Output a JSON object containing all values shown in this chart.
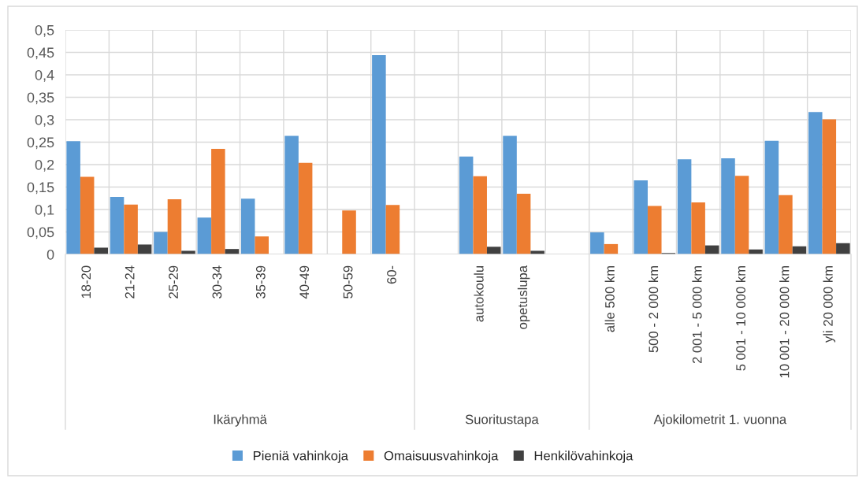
{
  "chart_data": {
    "type": "bar",
    "categories": [
      "18-20",
      "21-24",
      "25-29",
      "30-34",
      "35-39",
      "40-49",
      "50-59",
      "60-",
      null,
      "autokoulu",
      "opetuslupa",
      null,
      "alle 500 km",
      "500 - 2 000 km",
      "2 001 - 5 000 km",
      "5 001 - 10 000 km",
      "10 001 - 20 000 km",
      "yli 20 000 km"
    ],
    "series": [
      {
        "name": "Pieniä vahinkoja",
        "color": "#5b9bd5",
        "values": [
          0.252,
          0.128,
          0.05,
          0.082,
          0.124,
          0.264,
          null,
          0.444,
          null,
          0.218,
          0.264,
          null,
          0.049,
          0.165,
          0.212,
          0.214,
          0.253,
          0.317
        ]
      },
      {
        "name": "Omaisuusvahinkoja",
        "color": "#ed7d31",
        "values": [
          0.173,
          0.111,
          0.123,
          0.235,
          0.04,
          0.204,
          0.098,
          0.11,
          null,
          0.174,
          0.135,
          null,
          0.023,
          0.108,
          0.116,
          0.175,
          0.132,
          0.301
        ]
      },
      {
        "name": "Henkilövahinkoja",
        "color": "#404040",
        "values": [
          0.015,
          0.022,
          0.008,
          0.012,
          null,
          null,
          null,
          null,
          null,
          0.017,
          0.008,
          null,
          null,
          0.003,
          0.02,
          0.011,
          0.018,
          0.025
        ]
      }
    ],
    "annotations": [
      "Ikäryhmä",
      "Suoritustapa",
      "Ajokilometrit 1. vuonna"
    ],
    "ylim": [
      0,
      0.5
    ],
    "yticks": [
      0,
      {
        "value": 0.05,
        "label": "0,05"
      },
      {
        "value": 0.1,
        "label": "0,1"
      },
      {
        "value": 0.15,
        "label": "0,15"
      },
      {
        "value": 0.2,
        "label": "0,2"
      },
      {
        "value": 0.25,
        "label": "0,25"
      },
      {
        "value": 0.3,
        "label": "0,3"
      },
      {
        "value": 0.35,
        "label": "0,35"
      },
      {
        "value": 0.4,
        "label": "0,4"
      },
      {
        "value": 0.45,
        "label": "0,45"
      },
      {
        "value": 0.5,
        "label": "0,5"
      }
    ],
    "grid": true,
    "legend": "bottom"
  }
}
